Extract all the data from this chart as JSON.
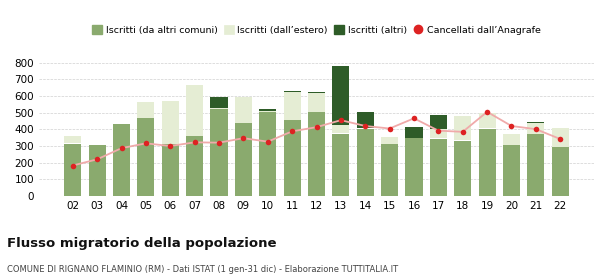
{
  "years": [
    "02",
    "03",
    "04",
    "05",
    "06",
    "07",
    "08",
    "09",
    "10",
    "11",
    "12",
    "13",
    "14",
    "15",
    "16",
    "17",
    "18",
    "19",
    "20",
    "21",
    "22"
  ],
  "iscritti_comuni": [
    315,
    307,
    430,
    468,
    310,
    360,
    520,
    438,
    505,
    455,
    505,
    375,
    405,
    313,
    348,
    345,
    333,
    405,
    308,
    370,
    295
  ],
  "iscritti_estero": [
    42,
    0,
    0,
    97,
    258,
    305,
    5,
    155,
    5,
    170,
    115,
    50,
    5,
    40,
    0,
    55,
    145,
    95,
    67,
    70,
    115
  ],
  "iscritti_altri": [
    3,
    0,
    0,
    0,
    3,
    3,
    68,
    0,
    12,
    5,
    5,
    355,
    95,
    0,
    67,
    85,
    0,
    0,
    0,
    5,
    0
  ],
  "cancellati": [
    183,
    220,
    287,
    316,
    300,
    322,
    320,
    347,
    326,
    388,
    413,
    455,
    420,
    405,
    466,
    392,
    385,
    505,
    420,
    401,
    342
  ],
  "color_comuni": "#8aaa6e",
  "color_estero": "#e5edd4",
  "color_altri": "#2e5c28",
  "color_cancellati": "#dd2222",
  "color_line": "#f0aaaa",
  "ylim_max": 840,
  "yticks": [
    0,
    100,
    200,
    300,
    400,
    500,
    600,
    700,
    800
  ],
  "legend0": "Iscritti (da altri comuni)",
  "legend1": "Iscritti (dall’estero)",
  "legend2": "Iscritti (altri)",
  "legend3": "Cancellati dall’Anagrafe",
  "title": "Flusso migratorio della popolazione",
  "subtitle": "COMUNE DI RIGNANO FLAMINIO (RM) - Dati ISTAT (1 gen-31 dic) - Elaborazione TUTTITALIA.IT",
  "bg": "#ffffff",
  "grid_color": "#d0d0d0"
}
